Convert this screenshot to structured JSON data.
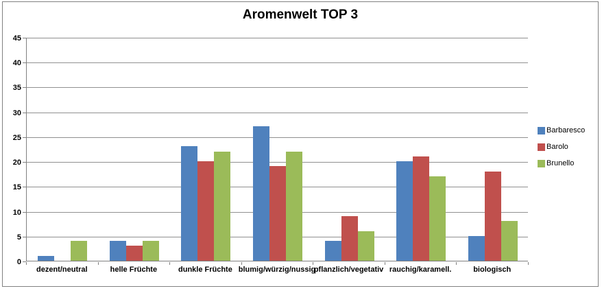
{
  "window": {
    "background_color": "#FFFFFF",
    "border_color": "#808080"
  },
  "chart_data": {
    "type": "bar",
    "title": "Aromenwelt TOP 3",
    "categories": [
      "dezent/neutral",
      "helle Früchte",
      "dunkle Früchte",
      "blumig/würzig/nussig",
      "pflanzlich/vegetativ",
      "rauchig/karamell.",
      "biologisch"
    ],
    "series": [
      {
        "name": "Barbaresco",
        "color": "#4F81BD",
        "values": [
          1,
          4,
          23,
          27,
          4,
          20,
          5
        ]
      },
      {
        "name": "Barolo",
        "color": "#C0504D",
        "values": [
          0,
          3,
          20,
          19,
          9,
          21,
          18
        ]
      },
      {
        "name": "Brunello",
        "color": "#9BBB59",
        "values": [
          4,
          4,
          22,
          22,
          6,
          17,
          8
        ]
      }
    ],
    "xlabel": "",
    "ylabel": "",
    "ylim": [
      0,
      45
    ],
    "yticks": [
      0,
      5,
      10,
      15,
      20,
      25,
      30,
      35,
      40,
      45
    ],
    "grid": true,
    "legend_position": "right",
    "gridline_color": "#909090",
    "axis_color": "#808080",
    "text_color": "#000000"
  }
}
